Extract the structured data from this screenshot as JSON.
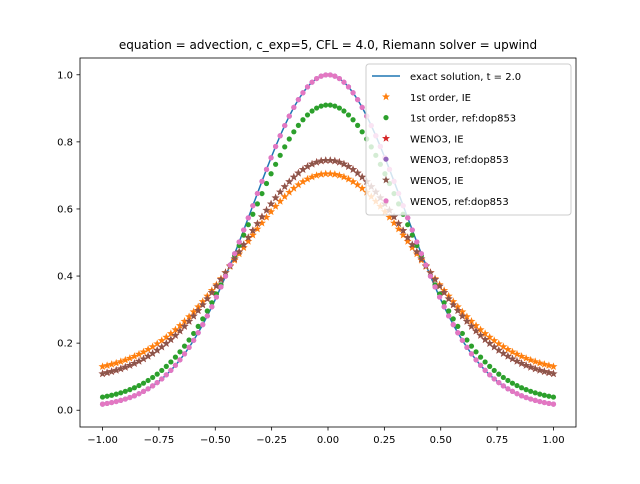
{
  "chart_data": {
    "type": "scatter",
    "title": "equation = advection, c_exp=5, CFL = 4.0, Riemann solver = upwind",
    "xlabel": "",
    "ylabel": "",
    "xlim": [
      -1.1,
      1.1
    ],
    "ylim": [
      -0.05,
      1.05
    ],
    "xticks": [
      -1.0,
      -0.75,
      -0.5,
      -0.25,
      0.0,
      0.25,
      0.5,
      0.75,
      1.0
    ],
    "xtick_labels": [
      "−1.00",
      "−0.75",
      "−0.50",
      "−0.25",
      "0.00",
      "0.25",
      "0.50",
      "0.75",
      "1.00"
    ],
    "yticks": [
      0.0,
      0.2,
      0.4,
      0.6,
      0.8,
      1.0
    ],
    "ytick_labels": [
      "0.0",
      "0.2",
      "0.4",
      "0.6",
      "0.8",
      "1.0"
    ],
    "grid": false,
    "legend_position": "top-right",
    "x_range": [
      -1.0,
      1.0
    ],
    "n_points": 100,
    "series": [
      {
        "name": "exact solution, t = 2.0",
        "style": "line",
        "color": "#1f77b4",
        "points": [
          [
            -1.0,
            0.007
          ],
          [
            -0.75,
            0.06
          ],
          [
            -0.5,
            0.33
          ],
          [
            -0.25,
            0.74
          ],
          [
            0.0,
            1.0
          ],
          [
            0.25,
            0.74
          ],
          [
            0.5,
            0.33
          ],
          [
            0.75,
            0.06
          ],
          [
            1.0,
            0.007
          ]
        ]
      },
      {
        "name": "1st order, IE",
        "style": "star",
        "color": "#ff7f0e",
        "points": [
          [
            -1.0,
            0.108
          ],
          [
            -0.75,
            0.175
          ],
          [
            -0.5,
            0.37
          ],
          [
            -0.25,
            0.59
          ],
          [
            0.0,
            0.705
          ],
          [
            0.25,
            0.59
          ],
          [
            0.5,
            0.37
          ],
          [
            0.75,
            0.175
          ],
          [
            1.0,
            0.108
          ]
        ]
      },
      {
        "name": "1st order, ref:dop853",
        "style": "dot",
        "color": "#2ca02c",
        "points": [
          [
            -1.0,
            0.025
          ],
          [
            -0.75,
            0.1
          ],
          [
            -0.5,
            0.34
          ],
          [
            -0.25,
            0.68
          ],
          [
            0.0,
            0.91
          ],
          [
            0.25,
            0.68
          ],
          [
            0.5,
            0.34
          ],
          [
            0.75,
            0.1
          ],
          [
            1.0,
            0.025
          ]
        ]
      },
      {
        "name": "WENO3, IE",
        "style": "star",
        "color": "#d62728",
        "points": [
          [
            -1.0,
            0.088
          ],
          [
            -0.75,
            0.155
          ],
          [
            -0.5,
            0.365
          ],
          [
            -0.25,
            0.62
          ],
          [
            0.0,
            0.745
          ],
          [
            0.25,
            0.62
          ],
          [
            0.5,
            0.365
          ],
          [
            0.75,
            0.155
          ],
          [
            1.0,
            0.088
          ]
        ]
      },
      {
        "name": "WENO3, ref:dop853",
        "style": "dot",
        "color": "#9467bd",
        "points": [
          [
            -1.0,
            0.007
          ],
          [
            -0.75,
            0.06
          ],
          [
            -0.5,
            0.33
          ],
          [
            -0.25,
            0.74
          ],
          [
            0.0,
            1.0
          ],
          [
            0.25,
            0.74
          ],
          [
            0.5,
            0.33
          ],
          [
            0.75,
            0.06
          ],
          [
            1.0,
            0.007
          ]
        ]
      },
      {
        "name": "WENO5, IE",
        "style": "star",
        "color": "#8c564b",
        "points": [
          [
            -1.0,
            0.088
          ],
          [
            -0.75,
            0.155
          ],
          [
            -0.5,
            0.365
          ],
          [
            -0.25,
            0.62
          ],
          [
            0.0,
            0.745
          ],
          [
            0.25,
            0.62
          ],
          [
            0.5,
            0.365
          ],
          [
            0.75,
            0.155
          ],
          [
            1.0,
            0.088
          ]
        ]
      },
      {
        "name": "WENO5, ref:dop853",
        "style": "dot",
        "color": "#e377c2",
        "points": [
          [
            -1.0,
            0.007
          ],
          [
            -0.75,
            0.06
          ],
          [
            -0.5,
            0.33
          ],
          [
            -0.25,
            0.74
          ],
          [
            0.0,
            1.0
          ],
          [
            0.25,
            0.74
          ],
          [
            0.5,
            0.33
          ],
          [
            0.75,
            0.06
          ],
          [
            1.0,
            0.007
          ]
        ]
      }
    ]
  }
}
